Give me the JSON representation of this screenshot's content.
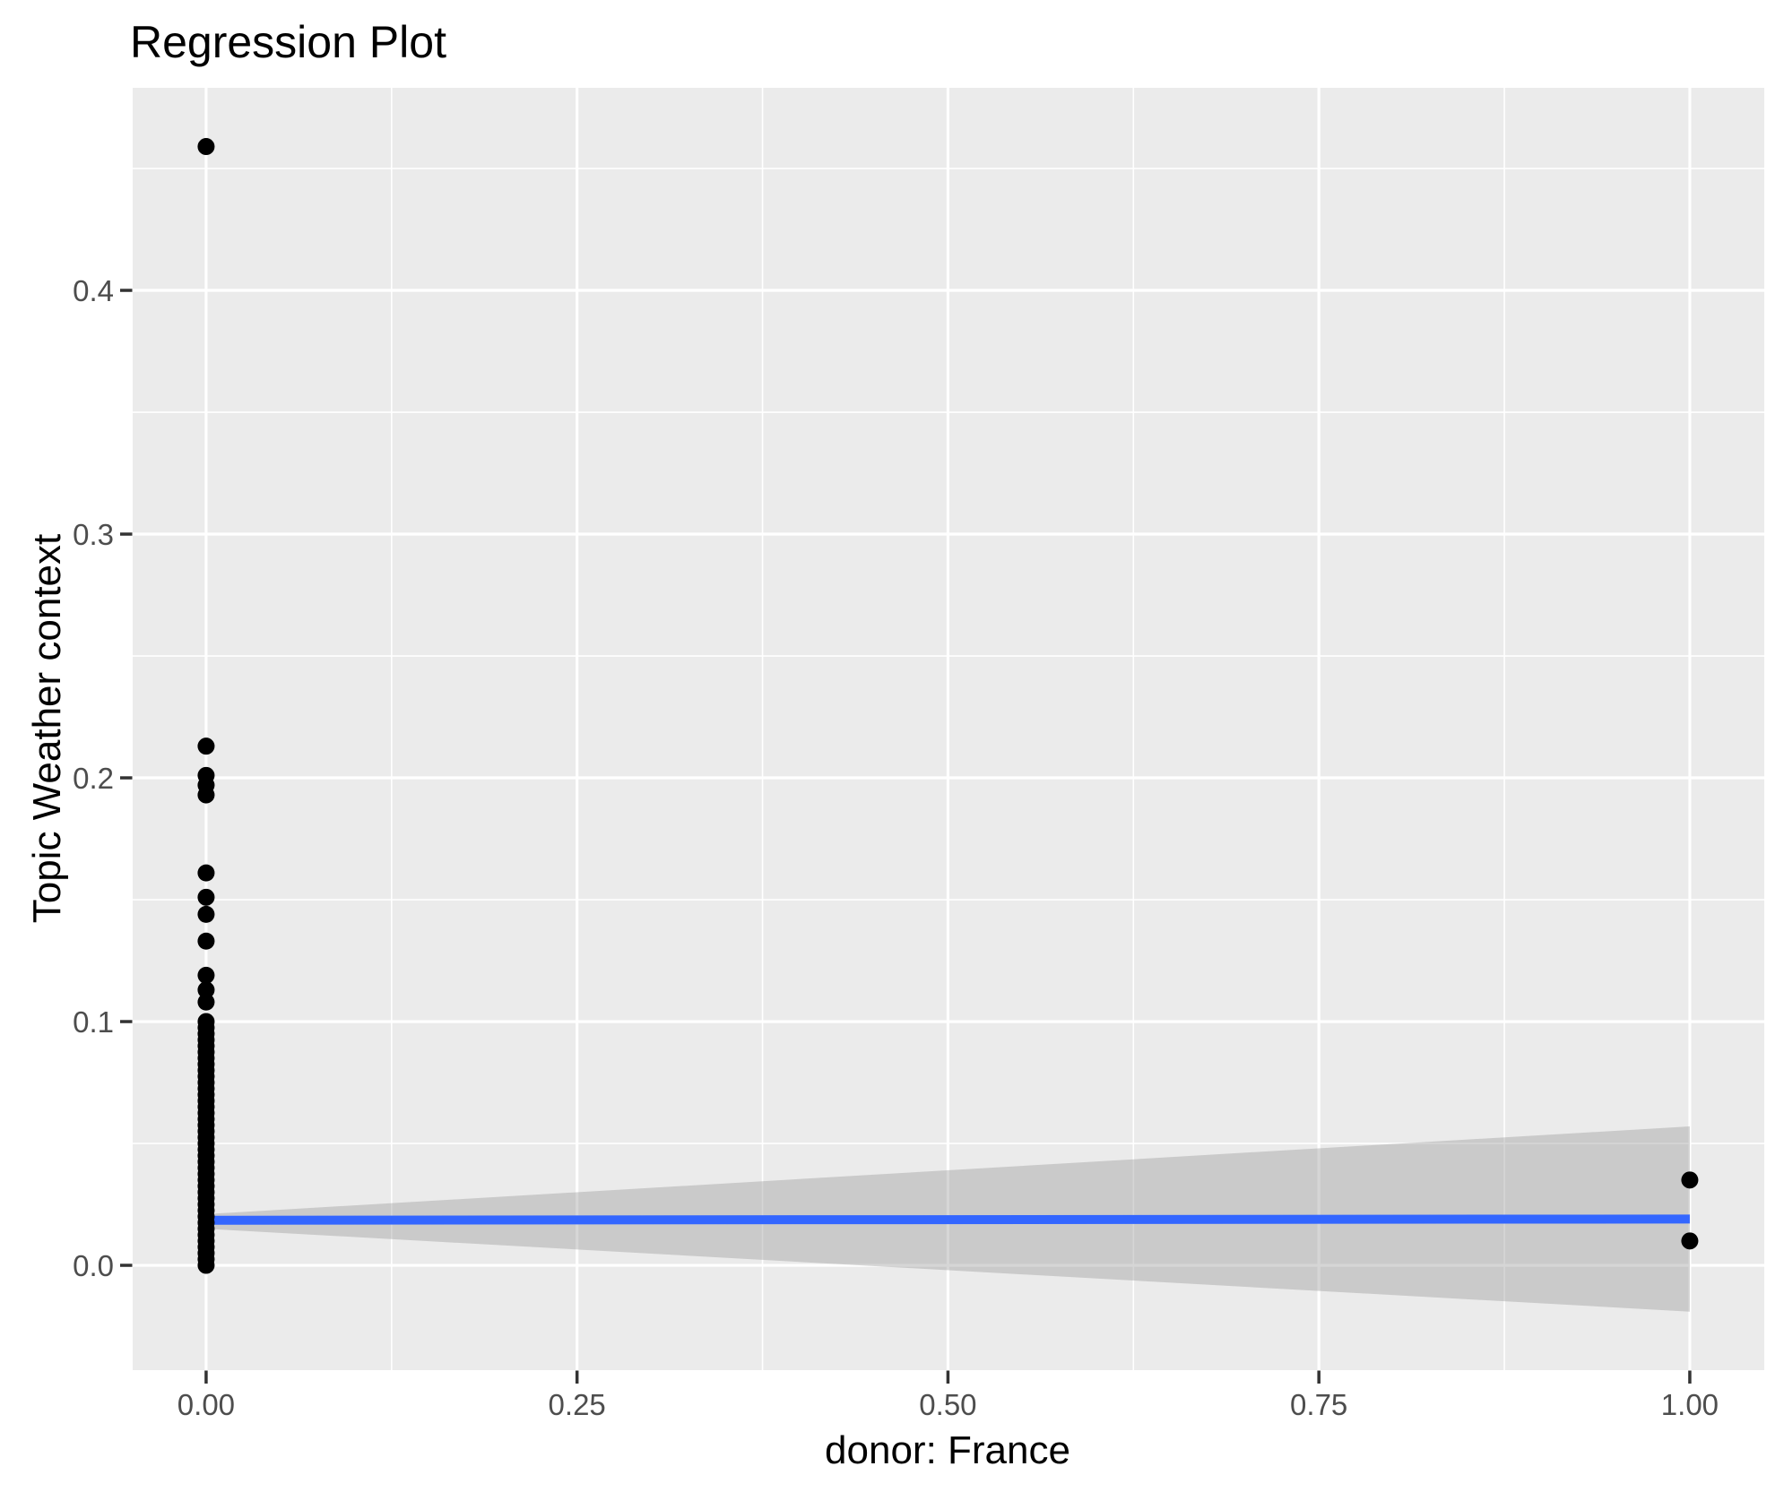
{
  "title": "Regression Plot",
  "chart_data": {
    "type": "scatter",
    "title": "Regression Plot",
    "xlabel": "donor: France",
    "ylabel": "Topic Weather context",
    "xlim": [
      -0.0495,
      1.0502
    ],
    "ylim": [
      -0.043,
      0.4831
    ],
    "x_major_ticks": [
      0,
      0.25,
      0.5,
      0.75,
      1
    ],
    "x_tick_labels": [
      "0.00",
      "0.25",
      "0.50",
      "0.75",
      "1.00"
    ],
    "x_minor_ticks": [
      0.125,
      0.375,
      0.625,
      0.875
    ],
    "y_major_ticks": [
      0,
      0.1,
      0.2,
      0.3,
      0.4
    ],
    "y_tick_labels": [
      "0.0",
      "0.1",
      "0.2",
      "0.3",
      "0.4"
    ],
    "y_minor_ticks": [
      0.05,
      0.15,
      0.25,
      0.35,
      0.45
    ],
    "grid": "major and minor white gridlines on grey panel",
    "legend": "none",
    "points": {
      "x0_value": 0,
      "x0_points_y": [
        0.459,
        0.213,
        0.201,
        0.197,
        0.193,
        0.161,
        0.151,
        0.144,
        0.133,
        0.119,
        0.113,
        0.108,
        0.1,
        0.0975,
        0.095,
        0.0925,
        0.09,
        0.0875,
        0.085,
        0.0825,
        0.08,
        0.0775,
        0.075,
        0.0725,
        0.07,
        0.0675,
        0.065,
        0.0625,
        0.06,
        0.0575,
        0.055,
        0.0525,
        0.05,
        0.0475,
        0.045,
        0.0425,
        0.04,
        0.0375,
        0.035,
        0.0325,
        0.03,
        0.0275,
        0.025,
        0.0225,
        0.02,
        0.0175,
        0.015,
        0.0125,
        0.01,
        0.0075,
        0.005,
        0.0025,
        0
      ],
      "x1_value": 1,
      "x1_points_y": [
        0.035,
        0.01
      ]
    },
    "regression_line": {
      "x": [
        0,
        1
      ],
      "y": [
        0.0185,
        0.019
      ]
    },
    "confidence_band": {
      "x": [
        0,
        1
      ],
      "upper": [
        0.021,
        0.057
      ],
      "lower": [
        0.015,
        -0.019
      ]
    },
    "colors": {
      "point": "#000000",
      "line": "#3366FF",
      "band_fill": "#999999",
      "band_opacity": 0.4,
      "panel_bg": "#EBEBEB",
      "grid": "#FFFFFF",
      "tick_label": "#4D4D4D",
      "tick_mark": "#333333",
      "title": "#000000",
      "background": "#FFFFFF"
    }
  }
}
